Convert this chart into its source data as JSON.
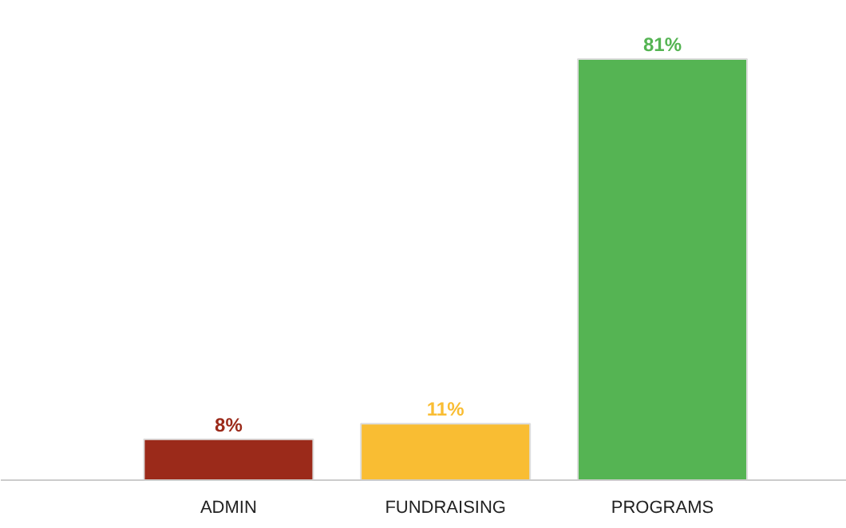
{
  "chart_data": {
    "type": "bar",
    "categories": [
      "ADMIN",
      "FUNDRAISING",
      "PROGRAMS"
    ],
    "values": [
      8,
      11,
      81
    ],
    "colors": [
      "#9b2a1a",
      "#f9bd33",
      "#55b453"
    ],
    "value_labels": [
      "8%",
      "11%",
      "81%"
    ],
    "grid": false
  }
}
